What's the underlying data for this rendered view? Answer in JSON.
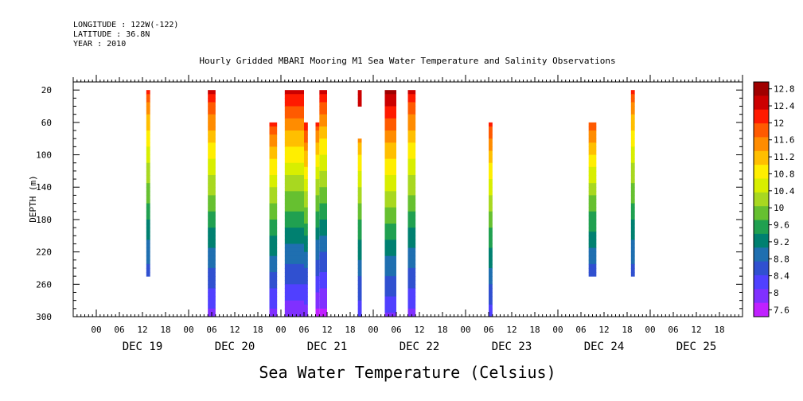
{
  "header": {
    "longitude": "LONGITUDE : 122W(-122)",
    "latitude": "LATITUDE : 36.8N",
    "year": "YEAR : 2010"
  },
  "chart_data": {
    "type": "heatmap",
    "title": "Hourly Gridded MBARI Mooring M1 Sea Water Temperature and Salinity Observations",
    "xlabel": "Sea Water Temperature (Celsius)",
    "ylabel": "DEPTH (m)",
    "ylim": [
      300,
      10
    ],
    "y_ticks": [
      20,
      60,
      100,
      140,
      180,
      220,
      260,
      300
    ],
    "x_hour_ticks": [
      "00",
      "06",
      "12",
      "18",
      "00",
      "06",
      "12",
      "18",
      "00",
      "06",
      "12",
      "18",
      "00",
      "06",
      "12",
      "18",
      "00",
      "06",
      "12",
      "18",
      "00",
      "06",
      "12",
      "18",
      "00",
      "06",
      "12",
      "18"
    ],
    "x_day_labels": [
      "DEC 19",
      "DEC 20",
      "DEC 21",
      "DEC 22",
      "DEC 23",
      "DEC 24",
      "DEC 25"
    ],
    "x_range_hours": [
      -6,
      168
    ],
    "colorbar_labels": [
      "12.8",
      "12.4",
      "12",
      "11.6",
      "11.2",
      "10.8",
      "10.4",
      "10",
      "9.6",
      "9.2",
      "8.8",
      "8.4",
      "8",
      "7.6"
    ],
    "colorbar_colors": [
      "#a00000",
      "#cc0000",
      "#ff1a00",
      "#ff5a00",
      "#ff8c00",
      "#ffbf00",
      "#ffee00",
      "#d8ee00",
      "#a8d820",
      "#66c030",
      "#20a050",
      "#008070",
      "#1f6fb0",
      "#3050d0",
      "#5040ff",
      "#8030ff",
      "#c020ff"
    ],
    "profiles": [
      {
        "hour_start": 13,
        "hour_end": 14,
        "depth_top": 20,
        "depth_bottom": 250,
        "temp_top": 12.0,
        "temp_bottom": 8.5
      },
      {
        "hour_start": 29,
        "hour_end": 31,
        "depth_top": 20,
        "depth_bottom": 300,
        "temp_top": 12.4,
        "temp_bottom": 7.9
      },
      {
        "hour_start": 45,
        "hour_end": 47,
        "depth_top": 60,
        "depth_bottom": 300,
        "temp_top": 12.1,
        "temp_bottom": 7.9
      },
      {
        "hour_start": 49,
        "hour_end": 54,
        "depth_top": 20,
        "depth_bottom": 300,
        "temp_top": 12.5,
        "temp_bottom": 7.8
      },
      {
        "hour_start": 54,
        "hour_end": 55,
        "depth_top": 60,
        "depth_bottom": 300,
        "temp_top": 12.3,
        "temp_bottom": 7.8
      },
      {
        "hour_start": 57,
        "hour_end": 58,
        "depth_top": 60,
        "depth_bottom": 300,
        "temp_top": 12.0,
        "temp_bottom": 7.6
      },
      {
        "hour_start": 58,
        "hour_end": 60,
        "depth_top": 20,
        "depth_bottom": 300,
        "temp_top": 12.4,
        "temp_bottom": 7.6
      },
      {
        "hour_start": 68,
        "hour_end": 69,
        "depth_top": 20,
        "depth_bottom": 40,
        "temp_top": 12.5,
        "temp_bottom": 12.4
      },
      {
        "hour_start": 68,
        "hour_end": 69,
        "depth_top": 80,
        "depth_bottom": 300,
        "temp_top": 11.5,
        "temp_bottom": 8.1
      },
      {
        "hour_start": 75,
        "hour_end": 78,
        "depth_top": 20,
        "depth_bottom": 300,
        "temp_top": 12.8,
        "temp_bottom": 8.0
      },
      {
        "hour_start": 81,
        "hour_end": 83,
        "depth_top": 20,
        "depth_bottom": 300,
        "temp_top": 12.4,
        "temp_bottom": 7.9
      },
      {
        "hour_start": 102,
        "hour_end": 103,
        "depth_top": 60,
        "depth_bottom": 300,
        "temp_top": 12.1,
        "temp_bottom": 8.2
      },
      {
        "hour_start": 128,
        "hour_end": 130,
        "depth_top": 60,
        "depth_bottom": 250,
        "temp_top": 11.9,
        "temp_bottom": 8.5
      },
      {
        "hour_start": 139,
        "hour_end": 140,
        "depth_top": 20,
        "depth_bottom": 250,
        "temp_top": 12.0,
        "temp_bottom": 8.5
      }
    ]
  }
}
